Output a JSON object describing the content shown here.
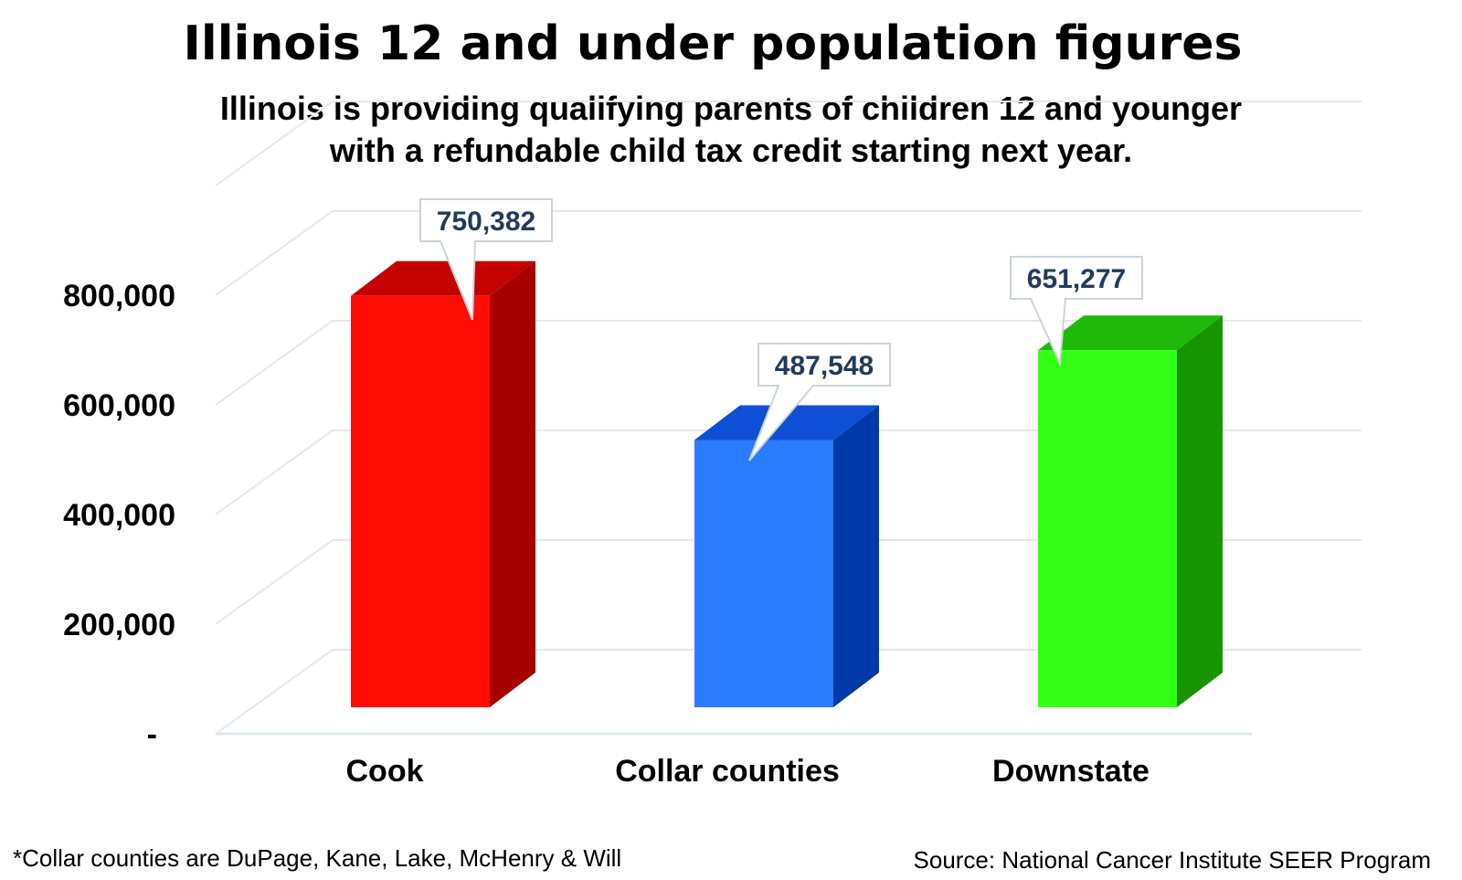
{
  "title": "Illinois 12 and under population figures",
  "subtitle": {
    "line1": "Illinois is providing qualifying parents of children 12 and younger",
    "line2": "with a refundable child tax credit starting next year."
  },
  "footnote": "*Collar counties are DuPage, Kane, Lake, McHenry & Will",
  "source": "Source: National Cancer Institute SEER Program",
  "chart_data": {
    "type": "bar",
    "categories": [
      "Cook",
      "Collar counties",
      "Downstate"
    ],
    "values": [
      750382,
      487548,
      651277
    ],
    "value_labels": [
      "750,382",
      "487,548",
      "651,277"
    ],
    "ylim": [
      0,
      1000000
    ],
    "yticks": [
      0,
      200000,
      400000,
      600000,
      800000
    ],
    "ytick_labels": [
      "-",
      "200,000",
      "400,000",
      "600,000",
      "800,000"
    ],
    "colors": [
      "#ff0d05",
      "#2a7bff",
      "#33ff16"
    ],
    "side_colors": [
      "#a60000",
      "#003aa8",
      "#179400"
    ],
    "top_colors": [
      "#c40000",
      "#0e4fd6",
      "#21b80c"
    ],
    "grid": true,
    "style": "3d-column"
  }
}
